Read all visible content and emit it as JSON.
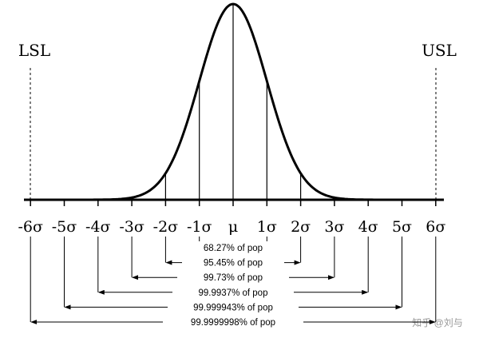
{
  "spec_limits": {
    "lower": "LSL",
    "upper": "USL"
  },
  "axis_labels": [
    "-6σ",
    "-5σ",
    "-4σ",
    "-3σ",
    "-2σ",
    "-1σ",
    "μ",
    "1σ",
    "2σ",
    "3σ",
    "4σ",
    "5σ",
    "6σ"
  ],
  "ranges": [
    "68.27% of pop",
    "95.45% of pop",
    "99.73% of pop",
    "99.9937% of pop",
    "99.999943% of pop",
    "99.9999998% of pop"
  ],
  "watermark": "知乎 @刘与"
}
